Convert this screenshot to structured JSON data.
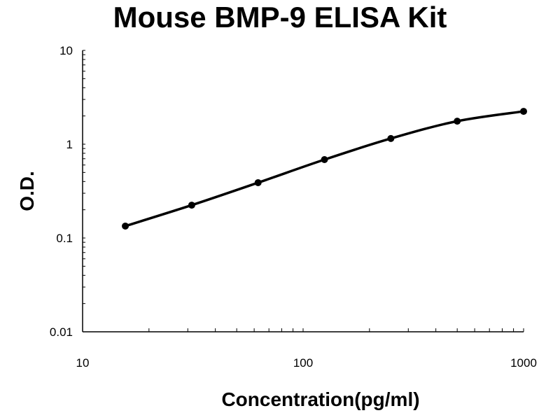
{
  "chart_data": {
    "type": "line",
    "title": "Mouse BMP-9 ELISA Kit",
    "xlabel": "Concentration(pg/ml)",
    "ylabel": "O.D.",
    "xscale": "log",
    "yscale": "log",
    "xlim": [
      10,
      1000
    ],
    "ylim": [
      0.01,
      10
    ],
    "xticks": [
      "10",
      "100",
      "1000"
    ],
    "yticks": [
      "0.01",
      "0.1",
      "1",
      "10"
    ],
    "grid": false,
    "legend": "none",
    "series": [
      {
        "x": [
          15.625,
          31.25,
          62.5,
          125,
          250,
          500,
          1000
        ],
        "y": [
          0.134,
          0.224,
          0.389,
          0.685,
          1.15,
          1.76,
          2.24
        ],
        "color": "#000000",
        "marker": "circle",
        "smooth": true
      }
    ]
  }
}
